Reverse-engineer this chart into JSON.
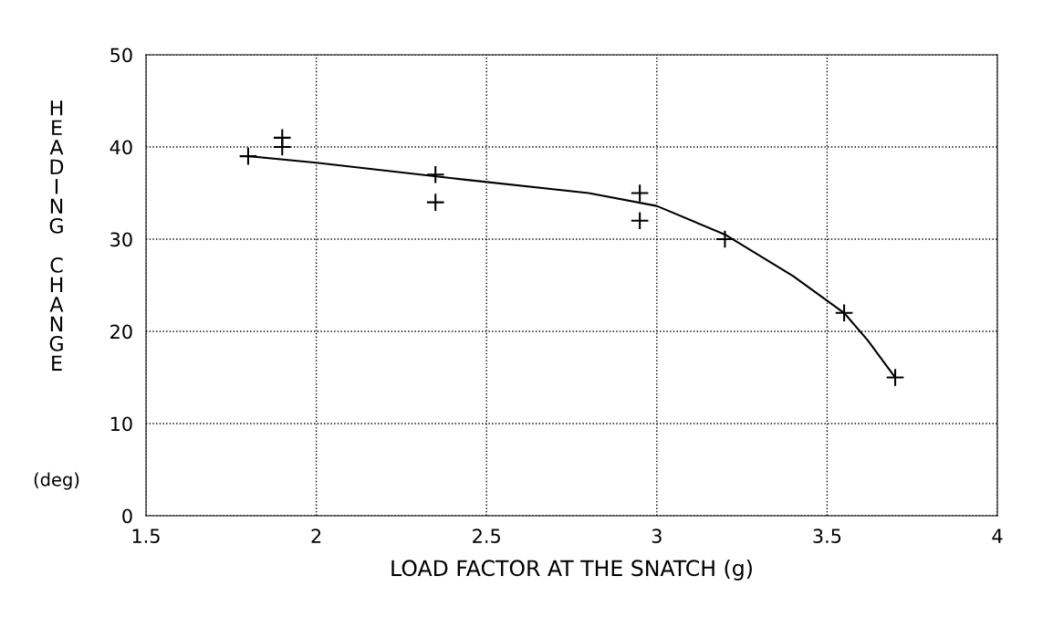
{
  "chart_data": {
    "type": "scatter",
    "xlabel": "LOAD FACTOR AT THE SNATCH (g)",
    "ylabel": "HEADING CHANGE (deg)",
    "xlim": [
      1.5,
      4
    ],
    "xticks": [
      1.5,
      2,
      2.5,
      3,
      3.5,
      4
    ],
    "ylim": [
      0,
      50
    ],
    "yticks": [
      0,
      10,
      20,
      30,
      40,
      50
    ],
    "grid": true,
    "legend": false,
    "series": [
      {
        "marker": "cross",
        "color": "#000000",
        "x": [
          1.8,
          1.9,
          1.9,
          2.35,
          2.35,
          2.95,
          2.95,
          3.2,
          3.55,
          3.7
        ],
        "values": [
          39,
          41,
          40,
          37,
          34,
          35,
          32,
          30,
          22,
          15
        ]
      },
      {
        "type": "line",
        "marker": "none",
        "line_style": "solid",
        "color": "#000000",
        "x": [
          1.8,
          2.0,
          2.4,
          2.8,
          3.0,
          3.2,
          3.4,
          3.55,
          3.62,
          3.7
        ],
        "values": [
          39,
          38.3,
          36.6,
          35,
          33.6,
          30.5,
          26,
          22,
          19,
          15
        ]
      }
    ]
  }
}
